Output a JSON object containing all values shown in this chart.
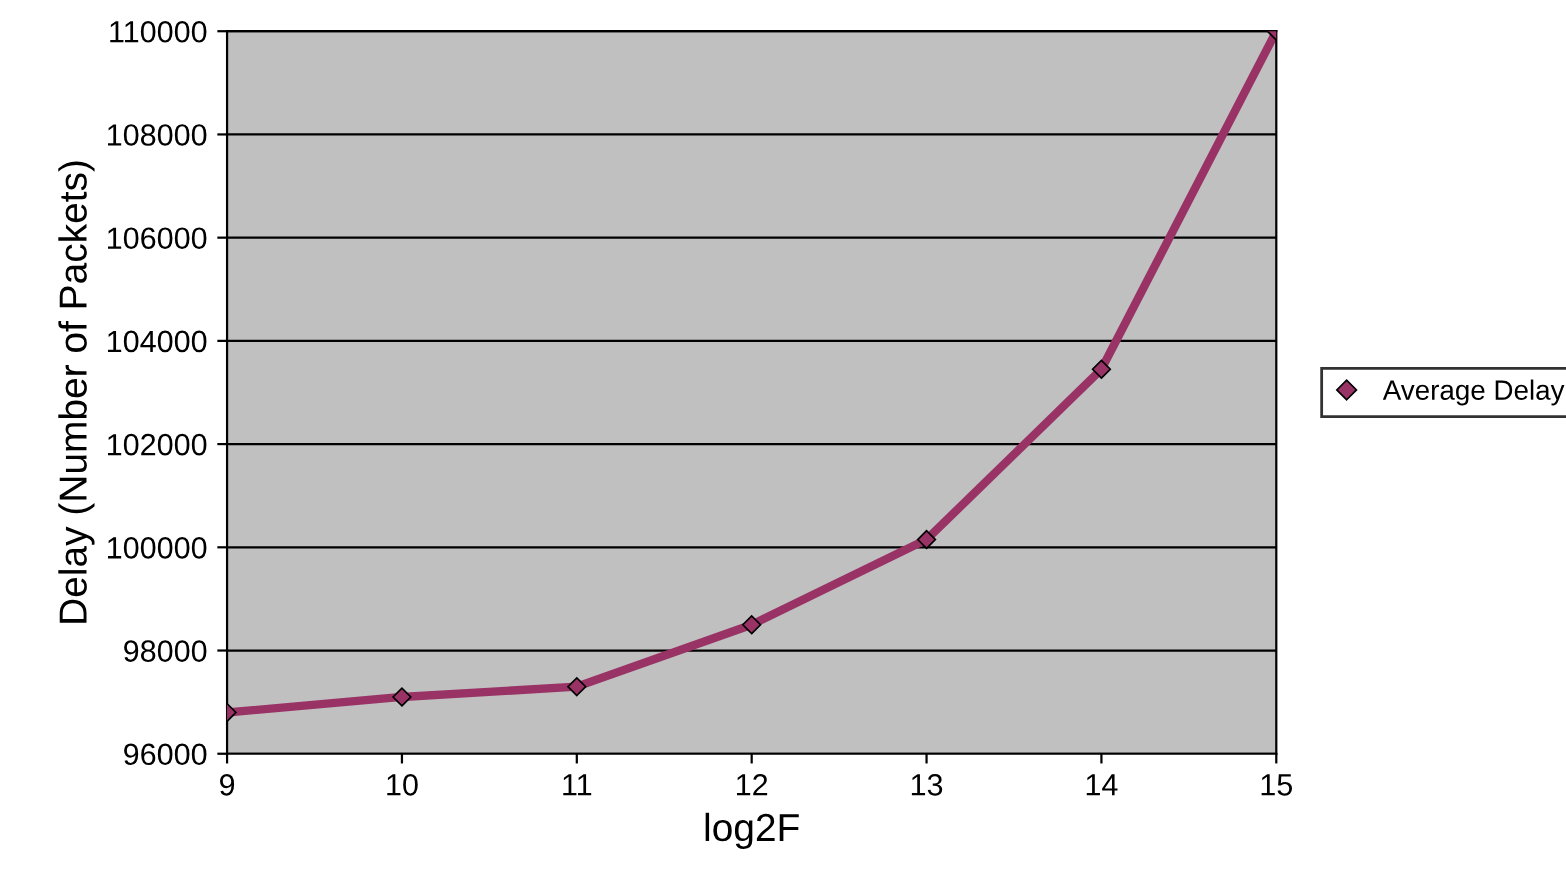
{
  "chart_data": {
    "type": "line",
    "xlabel": "log2F",
    "ylabel": "Delay (Number of Packets)",
    "x": [
      9,
      10,
      11,
      12,
      13,
      14,
      15
    ],
    "series": [
      {
        "name": "Average Delay",
        "color": "#993366",
        "values": [
          96800,
          97100,
          97300,
          98500,
          100150,
          103450,
          110000
        ]
      }
    ],
    "xlim": [
      9,
      15
    ],
    "xticks": [
      9,
      10,
      11,
      12,
      13,
      14,
      15
    ],
    "ylim": [
      96000,
      110000
    ],
    "yticks": [
      96000,
      98000,
      100000,
      102000,
      104000,
      106000,
      108000,
      110000
    ],
    "grid": "y",
    "legend": "right",
    "marker": "diamond",
    "line_style": "solid"
  }
}
